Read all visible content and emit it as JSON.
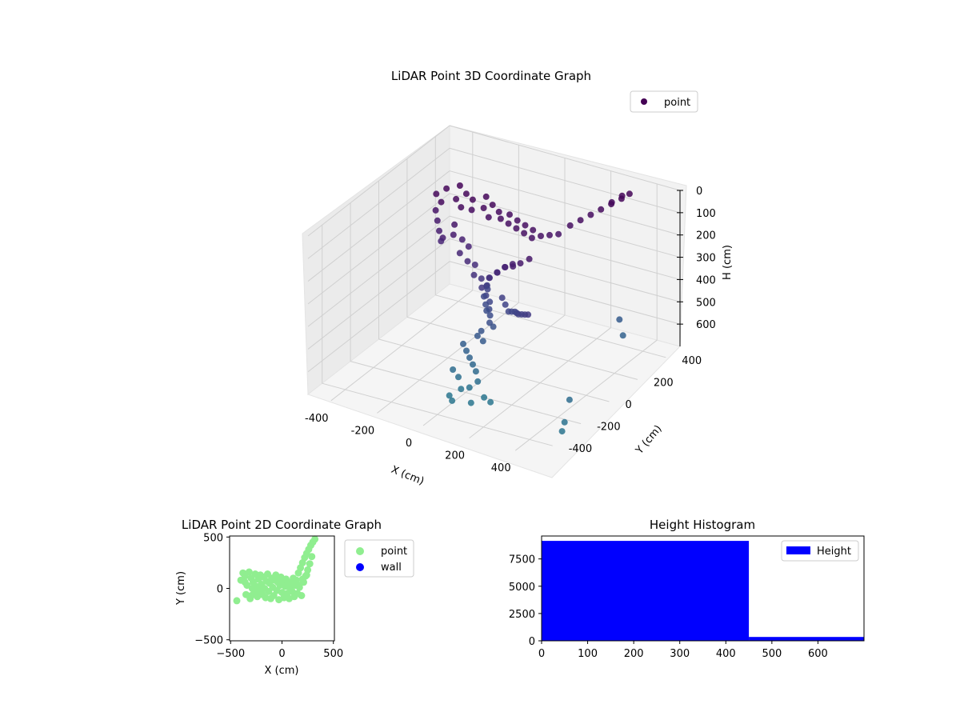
{
  "chart_data": [
    {
      "type": "scatter",
      "projection": "3d",
      "title": "LiDAR Point 3D Coordinate Graph",
      "xlabel": "X (cm)",
      "ylabel": "Y (cm)",
      "zlabel": "H (cm)",
      "xlim": [
        -500,
        500
      ],
      "ylim": [
        -500,
        500
      ],
      "zlim": [
        700,
        0
      ],
      "xticks": [
        -400,
        -200,
        0,
        200,
        400
      ],
      "yticks": [
        -400,
        -200,
        0,
        200,
        400
      ],
      "zticks": [
        0,
        100,
        200,
        300,
        400,
        500,
        600
      ],
      "grid": true,
      "legend": {
        "placement": "top-right",
        "entries": [
          {
            "label": "point",
            "color": "#440154"
          }
        ]
      },
      "colormap": "viridis",
      "series": [
        {
          "name": "point",
          "points": [
            [
              -300,
              80,
              40
            ],
            [
              -280,
              120,
              30
            ],
            [
              -260,
              50,
              50
            ],
            [
              -240,
              150,
              20
            ],
            [
              -220,
              90,
              45
            ],
            [
              -200,
              130,
              35
            ],
            [
              -180,
              60,
              55
            ],
            [
              -160,
              110,
              40
            ],
            [
              -140,
              70,
              60
            ],
            [
              -120,
              140,
              30
            ],
            [
              -100,
              90,
              50
            ],
            [
              -80,
              120,
              45
            ],
            [
              -60,
              60,
              65
            ],
            [
              -40,
              100,
              55
            ],
            [
              -20,
              80,
              70
            ],
            [
              0,
              110,
              60
            ],
            [
              20,
              70,
              75
            ],
            [
              40,
              100,
              70
            ],
            [
              60,
              60,
              80
            ],
            [
              80,
              90,
              75
            ],
            [
              100,
              50,
              85
            ],
            [
              120,
              80,
              80
            ],
            [
              140,
              40,
              90
            ],
            [
              160,
              70,
              90
            ],
            [
              180,
              100,
              95
            ],
            [
              200,
              130,
              100
            ],
            [
              220,
              180,
              80
            ],
            [
              240,
              220,
              70
            ],
            [
              260,
              260,
              60
            ],
            [
              280,
              300,
              50
            ],
            [
              300,
              340,
              40
            ],
            [
              320,
              380,
              30
            ],
            [
              330,
              420,
              25
            ],
            [
              310,
              400,
              30
            ],
            [
              290,
              360,
              45
            ],
            [
              -290,
              60,
              100
            ],
            [
              -270,
              40,
              130
            ],
            [
              -250,
              20,
              160
            ],
            [
              -230,
              0,
              190
            ],
            [
              -210,
              -20,
              160
            ],
            [
              -190,
              30,
              120
            ],
            [
              -170,
              -10,
              140
            ],
            [
              -150,
              20,
              170
            ],
            [
              -130,
              -30,
              200
            ],
            [
              -110,
              0,
              180
            ],
            [
              -90,
              -40,
              220
            ],
            [
              -70,
              -20,
              240
            ],
            [
              -50,
              -60,
              260
            ],
            [
              -30,
              -40,
              280
            ],
            [
              -10,
              -70,
              300
            ],
            [
              10,
              -50,
              260
            ],
            [
              30,
              -80,
              240
            ],
            [
              50,
              -60,
              220
            ],
            [
              70,
              -90,
              200
            ],
            [
              90,
              -70,
              180
            ],
            [
              110,
              -100,
              160
            ],
            [
              130,
              -80,
              150
            ],
            [
              150,
              -110,
              140
            ],
            [
              170,
              -90,
              130
            ],
            [
              190,
              -60,
              120
            ],
            [
              -20,
              -20,
              320
            ],
            [
              -10,
              -40,
              350
            ],
            [
              0,
              -30,
              380
            ],
            [
              10,
              -50,
              400
            ],
            [
              20,
              -60,
              420
            ],
            [
              30,
              -80,
              440
            ],
            [
              40,
              -70,
              460
            ],
            [
              0,
              -90,
              480
            ],
            [
              -10,
              -100,
              500
            ],
            [
              20,
              -110,
              510
            ],
            [
              -30,
              0,
              330
            ],
            [
              -40,
              20,
              360
            ],
            [
              -50,
              10,
              390
            ],
            [
              -30,
              -10,
              410
            ],
            [
              -20,
              -20,
              430
            ],
            [
              60,
              -40,
              340
            ],
            [
              80,
              -50,
              360
            ],
            [
              100,
              -60,
              380
            ],
            [
              120,
              -70,
              370
            ],
            [
              140,
              -80,
              360
            ],
            [
              160,
              -100,
              350
            ],
            [
              180,
              -120,
              340
            ],
            [
              200,
              -130,
              330
            ],
            [
              220,
              -140,
              320
            ],
            [
              240,
              -150,
              310
            ],
            [
              -60,
              -120,
              540
            ],
            [
              -40,
              -130,
              560
            ],
            [
              -20,
              -140,
              580
            ],
            [
              0,
              -150,
              600
            ],
            [
              20,
              -160,
              620
            ],
            [
              -80,
              -160,
              640
            ],
            [
              -50,
              -170,
              660
            ],
            [
              40,
              -180,
              650
            ],
            [
              10,
              -190,
              680
            ],
            [
              -20,
              -200,
              690
            ],
            [
              360,
              300,
              520
            ],
            [
              400,
              260,
              560
            ],
            [
              420,
              -150,
              640
            ],
            [
              460,
              -250,
              680
            ],
            [
              480,
              -300,
              690
            ],
            [
              80,
              -200,
              700
            ],
            [
              -40,
              -250,
              700
            ],
            [
              -10,
              -280,
              700
            ],
            [
              120,
              -220,
              700
            ],
            [
              60,
              -260,
              700
            ]
          ]
        }
      ]
    },
    {
      "type": "scatter",
      "title": "LiDAR Point 2D Coordinate Graph",
      "xlabel": "X (cm)",
      "ylabel": "Y (cm)",
      "xlim": [
        -510,
        510
      ],
      "ylim": [
        -510,
        510
      ],
      "xticks": [
        -500,
        0,
        500
      ],
      "yticks": [
        -500,
        0,
        500
      ],
      "grid": false,
      "legend": {
        "placement": "outside-right",
        "entries": [
          {
            "label": "point",
            "color": "#90ee90"
          },
          {
            "label": "wall",
            "color": "#0000ff"
          }
        ]
      },
      "series": [
        {
          "name": "point",
          "color": "#90ee90",
          "points": [
            [
              -440,
              -120
            ],
            [
              -400,
              80
            ],
            [
              -380,
              150
            ],
            [
              -360,
              120
            ],
            [
              -350,
              -60
            ],
            [
              -340,
              30
            ],
            [
              -320,
              160
            ],
            [
              -310,
              -100
            ],
            [
              -300,
              100
            ],
            [
              -290,
              0
            ],
            [
              -280,
              60
            ],
            [
              -270,
              -40
            ],
            [
              -260,
              140
            ],
            [
              -250,
              20
            ],
            [
              -240,
              -80
            ],
            [
              -230,
              90
            ],
            [
              -220,
              -20
            ],
            [
              -210,
              130
            ],
            [
              -200,
              40
            ],
            [
              -190,
              -60
            ],
            [
              -180,
              110
            ],
            [
              -170,
              0
            ],
            [
              -160,
              -90
            ],
            [
              -150,
              70
            ],
            [
              -140,
              140
            ],
            [
              -130,
              -30
            ],
            [
              -120,
              50
            ],
            [
              -110,
              -100
            ],
            [
              -100,
              100
            ],
            [
              -90,
              10
            ],
            [
              -80,
              -70
            ],
            [
              -70,
              80
            ],
            [
              -60,
              130
            ],
            [
              -50,
              -20
            ],
            [
              -40,
              60
            ],
            [
              -30,
              -110
            ],
            [
              -20,
              30
            ],
            [
              -10,
              110
            ],
            [
              0,
              -40
            ],
            [
              10,
              70
            ],
            [
              20,
              -90
            ],
            [
              30,
              20
            ],
            [
              40,
              90
            ],
            [
              50,
              -50
            ],
            [
              60,
              40
            ],
            [
              70,
              -100
            ],
            [
              80,
              0
            ],
            [
              90,
              60
            ],
            [
              100,
              -30
            ],
            [
              110,
              100
            ],
            [
              120,
              -80
            ],
            [
              130,
              30
            ],
            [
              140,
              80
            ],
            [
              150,
              -50
            ],
            [
              160,
              150
            ],
            [
              170,
              10
            ],
            [
              180,
              200
            ],
            [
              190,
              -70
            ],
            [
              200,
              250
            ],
            [
              210,
              60
            ],
            [
              220,
              300
            ],
            [
              230,
              120
            ],
            [
              240,
              340
            ],
            [
              250,
              180
            ],
            [
              260,
              380
            ],
            [
              270,
              240
            ],
            [
              280,
              420
            ],
            [
              290,
              310
            ],
            [
              300,
              450
            ],
            [
              320,
              480
            ],
            [
              240,
              130
            ],
            [
              200,
              90
            ],
            [
              150,
              40
            ],
            [
              -300,
              -70
            ],
            [
              -360,
              60
            ]
          ]
        },
        {
          "name": "wall",
          "color": "#0000ff",
          "points": []
        }
      ]
    },
    {
      "type": "bar",
      "subtype": "histogram",
      "title": "Height Histogram",
      "xlabel": "",
      "ylabel": "",
      "xlim": [
        0,
        700
      ],
      "ylim": [
        0,
        9600
      ],
      "xticks": [
        0,
        100,
        200,
        300,
        400,
        500,
        600
      ],
      "yticks": [
        0,
        2500,
        5000,
        7500
      ],
      "grid": false,
      "legend": {
        "placement": "top-right",
        "entries": [
          {
            "label": "Height",
            "color": "#0000ff"
          }
        ]
      },
      "series": [
        {
          "name": "Height",
          "color": "#0000ff",
          "bins": [
            {
              "x0": 0,
              "x1": 450,
              "count": 9150
            },
            {
              "x0": 450,
              "x1": 700,
              "count": 350
            }
          ]
        }
      ]
    }
  ]
}
